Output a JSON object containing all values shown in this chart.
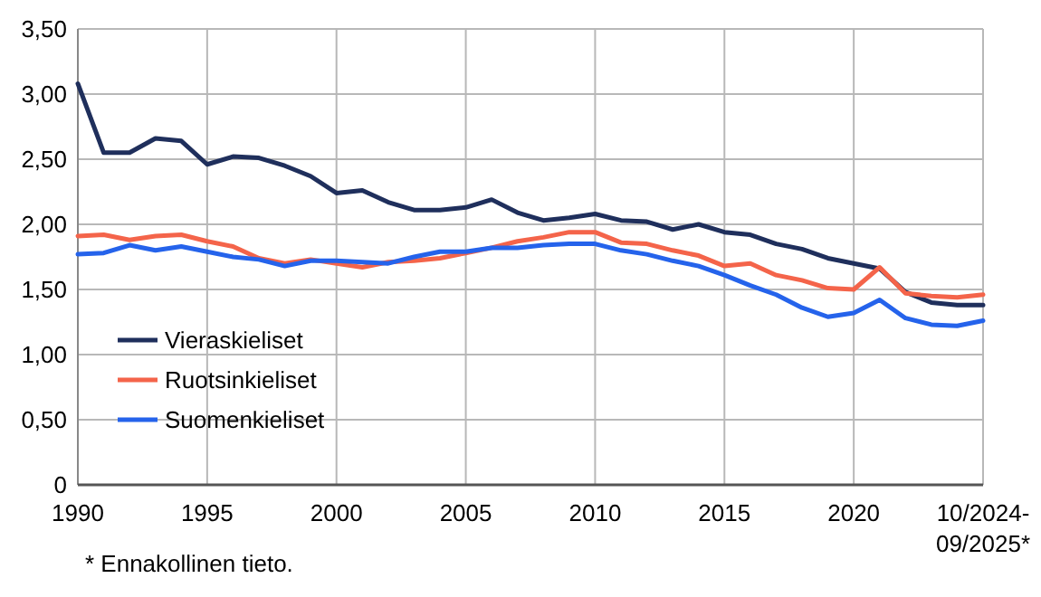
{
  "chart_data": {
    "type": "line",
    "x": [
      1990,
      1991,
      1992,
      1993,
      1994,
      1995,
      1996,
      1997,
      1998,
      1999,
      2000,
      2001,
      2002,
      2003,
      2004,
      2005,
      2006,
      2007,
      2008,
      2009,
      2010,
      2011,
      2012,
      2013,
      2014,
      2015,
      2016,
      2017,
      2018,
      2019,
      2020,
      2021,
      2022,
      2023,
      2024,
      2025
    ],
    "series": [
      {
        "name": "Vieraskieliset",
        "color": "#1f2f5c",
        "values": [
          3.08,
          2.55,
          2.55,
          2.66,
          2.64,
          2.46,
          2.52,
          2.51,
          2.45,
          2.37,
          2.24,
          2.26,
          2.17,
          2.11,
          2.11,
          2.13,
          2.19,
          2.09,
          2.03,
          2.05,
          2.08,
          2.03,
          2.02,
          1.96,
          2.0,
          1.94,
          1.92,
          1.85,
          1.81,
          1.74,
          1.7,
          1.66,
          1.48,
          1.4,
          1.38,
          1.38
        ]
      },
      {
        "name": "Ruotsinkieliset",
        "color": "#f4644a",
        "values": [
          1.91,
          1.92,
          1.88,
          1.91,
          1.92,
          1.87,
          1.83,
          1.74,
          1.7,
          1.73,
          1.7,
          1.67,
          1.71,
          1.72,
          1.74,
          1.78,
          1.82,
          1.87,
          1.9,
          1.94,
          1.94,
          1.86,
          1.85,
          1.8,
          1.76,
          1.68,
          1.7,
          1.61,
          1.57,
          1.51,
          1.5,
          1.67,
          1.47,
          1.45,
          1.44,
          1.46
        ]
      },
      {
        "name": "Suomenkieliset",
        "color": "#2563eb",
        "values": [
          1.77,
          1.78,
          1.84,
          1.8,
          1.83,
          1.79,
          1.75,
          1.73,
          1.68,
          1.72,
          1.72,
          1.71,
          1.7,
          1.75,
          1.79,
          1.79,
          1.82,
          1.82,
          1.84,
          1.85,
          1.85,
          1.8,
          1.77,
          1.72,
          1.68,
          1.61,
          1.53,
          1.46,
          1.36,
          1.29,
          1.32,
          1.42,
          1.28,
          1.23,
          1.22,
          1.26
        ]
      }
    ],
    "xlim": [
      1990,
      2025
    ],
    "xticks": [
      1990,
      1995,
      2000,
      2005,
      2010,
      2015,
      2020,
      {
        "value": 2025,
        "label": "10/2024-09/2025*"
      }
    ],
    "ylim": [
      0,
      3.5
    ],
    "yticks": [
      {
        "value": 0,
        "label": "0"
      },
      {
        "value": 0.5,
        "label": "0,50"
      },
      {
        "value": 1,
        "label": "1,00"
      },
      {
        "value": 1.5,
        "label": "1,50"
      },
      {
        "value": 2,
        "label": "2,00"
      },
      {
        "value": 2.5,
        "label": "2,50"
      },
      {
        "value": 3,
        "label": "3,00"
      },
      {
        "value": 3.5,
        "label": "3,50"
      }
    ],
    "grid": true,
    "legend": "bottom left",
    "line_style": "solid",
    "marker": "none",
    "annotations": [
      "* Ennakollinen tieto."
    ]
  }
}
